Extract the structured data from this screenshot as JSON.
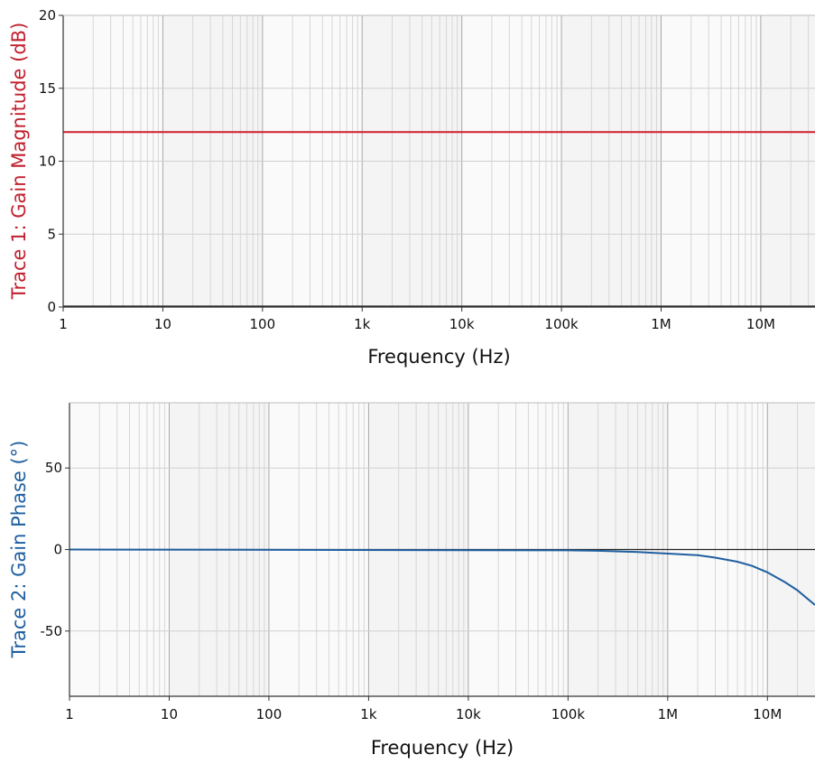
{
  "chart_data": [
    {
      "type": "line",
      "ylabel": "Trace 1: Gain Magnitude (dB)",
      "xlabel": "Frequency (Hz)",
      "x_scale": "log",
      "xlim": [
        1,
        35000000
      ],
      "ylim": [
        0,
        20
      ],
      "xticks": [
        1,
        10,
        100,
        1000,
        10000,
        100000,
        1000000,
        10000000
      ],
      "xtick_labels": [
        "1",
        "10",
        "100",
        "1k",
        "10k",
        "100k",
        "1M",
        "10M"
      ],
      "yticks": [
        0,
        5,
        10,
        15,
        20
      ],
      "ytick_labels": [
        "0",
        "5",
        "10",
        "15",
        "20"
      ],
      "grid": true,
      "colors": {
        "trace": "#d0202e",
        "ylabel": "#c0202e",
        "zero_line": "#222222"
      },
      "series": [
        {
          "x": [
            1,
            35000000
          ],
          "y": [
            12,
            12
          ]
        }
      ]
    },
    {
      "type": "line",
      "ylabel": "Trace 2: Gain Phase (°)",
      "xlabel": "Frequency (Hz)",
      "x_scale": "log",
      "xlim": [
        1,
        30000000
      ],
      "ylim": [
        -90,
        90
      ],
      "xticks": [
        1,
        10,
        100,
        1000,
        10000,
        100000,
        1000000,
        10000000
      ],
      "xtick_labels": [
        "1",
        "10",
        "100",
        "1k",
        "10k",
        "100k",
        "1M",
        "10M"
      ],
      "yticks": [
        -50,
        0,
        50
      ],
      "ytick_labels": [
        "-50",
        "0",
        "50"
      ],
      "grid": true,
      "colors": {
        "trace": "#1f5fa0",
        "ylabel": "#1f5fa0",
        "zero_line": "#222222"
      },
      "series": [
        {
          "x": [
            1,
            100000,
            200000,
            500000,
            1000000,
            2000000,
            3000000,
            5000000,
            7000000,
            10000000,
            15000000,
            20000000,
            25000000,
            30000000
          ],
          "y": [
            0,
            -0.5,
            -0.8,
            -1.5,
            -2.5,
            -3.5,
            -5,
            -7.5,
            -10,
            -14,
            -20,
            -25,
            -30,
            -34
          ]
        }
      ]
    }
  ]
}
